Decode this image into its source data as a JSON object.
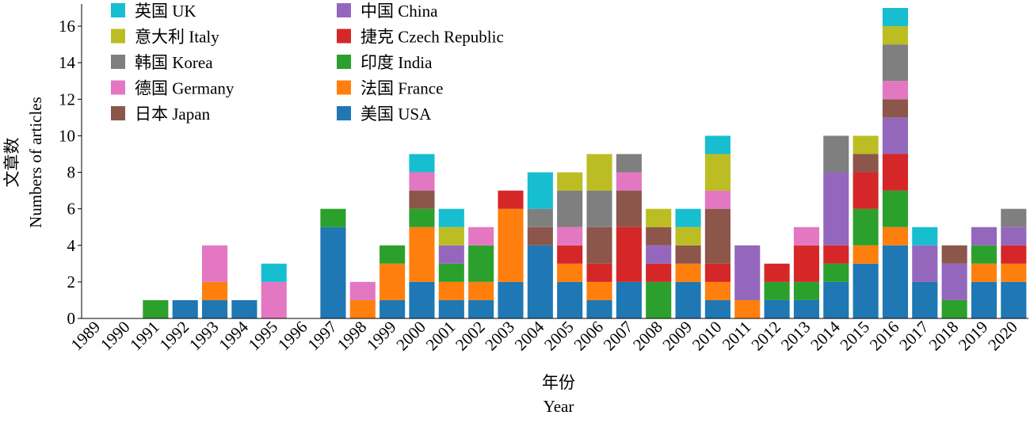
{
  "chart_data": {
    "type": "stacked_bar",
    "ylabel": "文章数",
    "ylabel_en": "Numbers of articles",
    "xlabel": "年份",
    "xlabel_en": "Year",
    "categories": [
      "1989",
      "1990",
      "1991",
      "1992",
      "1993",
      "1994",
      "1995",
      "1996",
      "1997",
      "1998",
      "1999",
      "2000",
      "2001",
      "2002",
      "2003",
      "2004",
      "2005",
      "2006",
      "2007",
      "2008",
      "2009",
      "2010",
      "2011",
      "2012",
      "2013",
      "2014",
      "2015",
      "2016",
      "2017",
      "2018",
      "2019",
      "2020"
    ],
    "ylim": [
      0,
      17
    ],
    "yticks": [
      0,
      2,
      4,
      6,
      8,
      10,
      12,
      14,
      16
    ],
    "series": [
      {
        "name": "美国 USA",
        "color": "#1f77b4",
        "values": [
          0,
          0,
          0,
          1,
          1,
          1,
          0,
          0,
          5,
          0,
          1,
          2,
          1,
          1,
          2,
          4,
          2,
          1,
          2,
          0,
          2,
          1,
          0,
          1,
          1,
          2,
          3,
          4,
          2,
          0,
          2,
          2
        ]
      },
      {
        "name": "法国 France",
        "color": "#ff7f0e",
        "values": [
          0,
          0,
          0,
          0,
          1,
          0,
          0,
          0,
          0,
          1,
          2,
          3,
          1,
          1,
          4,
          0,
          1,
          1,
          0,
          0,
          1,
          1,
          1,
          0,
          0,
          0,
          1,
          1,
          0,
          0,
          1,
          1
        ]
      },
      {
        "name": "印度 India",
        "color": "#2ca02c",
        "values": [
          0,
          0,
          1,
          0,
          0,
          0,
          0,
          0,
          1,
          0,
          1,
          1,
          1,
          2,
          0,
          0,
          0,
          0,
          0,
          2,
          0,
          0,
          0,
          1,
          1,
          1,
          2,
          2,
          0,
          1,
          1,
          0
        ]
      },
      {
        "name": "捷克 Czech Republic",
        "color": "#d62728",
        "values": [
          0,
          0,
          0,
          0,
          0,
          0,
          0,
          0,
          0,
          0,
          0,
          0,
          0,
          0,
          1,
          0,
          1,
          1,
          3,
          1,
          0,
          1,
          0,
          1,
          2,
          1,
          2,
          2,
          0,
          0,
          0,
          1
        ]
      },
      {
        "name": "中国 China",
        "color": "#9467bd",
        "values": [
          0,
          0,
          0,
          0,
          0,
          0,
          0,
          0,
          0,
          0,
          0,
          0,
          1,
          0,
          0,
          0,
          0,
          0,
          0,
          1,
          0,
          0,
          3,
          0,
          0,
          4,
          0,
          2,
          2,
          2,
          1,
          1
        ]
      },
      {
        "name": "日本 Japan",
        "color": "#8c564b",
        "values": [
          0,
          0,
          0,
          0,
          0,
          0,
          0,
          0,
          0,
          0,
          0,
          1,
          0,
          0,
          0,
          1,
          0,
          2,
          2,
          1,
          1,
          3,
          0,
          0,
          0,
          0,
          1,
          1,
          0,
          1,
          0,
          0
        ]
      },
      {
        "name": "德国 Germany",
        "color": "#e377c2",
        "values": [
          0,
          0,
          0,
          0,
          2,
          0,
          2,
          0,
          0,
          1,
          0,
          1,
          0,
          1,
          0,
          0,
          1,
          0,
          1,
          0,
          0,
          1,
          0,
          0,
          1,
          0,
          0,
          1,
          0,
          0,
          0,
          0
        ]
      },
      {
        "name": "韩国 Korea",
        "color": "#7f7f7f",
        "values": [
          0,
          0,
          0,
          0,
          0,
          0,
          0,
          0,
          0,
          0,
          0,
          0,
          0,
          0,
          0,
          1,
          2,
          2,
          1,
          0,
          0,
          0,
          0,
          0,
          0,
          2,
          0,
          2,
          0,
          0,
          0,
          1
        ]
      },
      {
        "name": "意大利 Italy",
        "color": "#bcbd22",
        "values": [
          0,
          0,
          0,
          0,
          0,
          0,
          0,
          0,
          0,
          0,
          0,
          0,
          1,
          0,
          0,
          0,
          1,
          2,
          0,
          1,
          1,
          2,
          0,
          0,
          0,
          0,
          1,
          1,
          0,
          0,
          0,
          0
        ]
      },
      {
        "name": "英国 UK",
        "color": "#17becf",
        "values": [
          0,
          0,
          0,
          0,
          0,
          0,
          1,
          0,
          0,
          0,
          0,
          1,
          1,
          0,
          0,
          2,
          0,
          0,
          0,
          0,
          1,
          1,
          0,
          0,
          0,
          0,
          0,
          1,
          1,
          0,
          0,
          0
        ]
      }
    ]
  }
}
